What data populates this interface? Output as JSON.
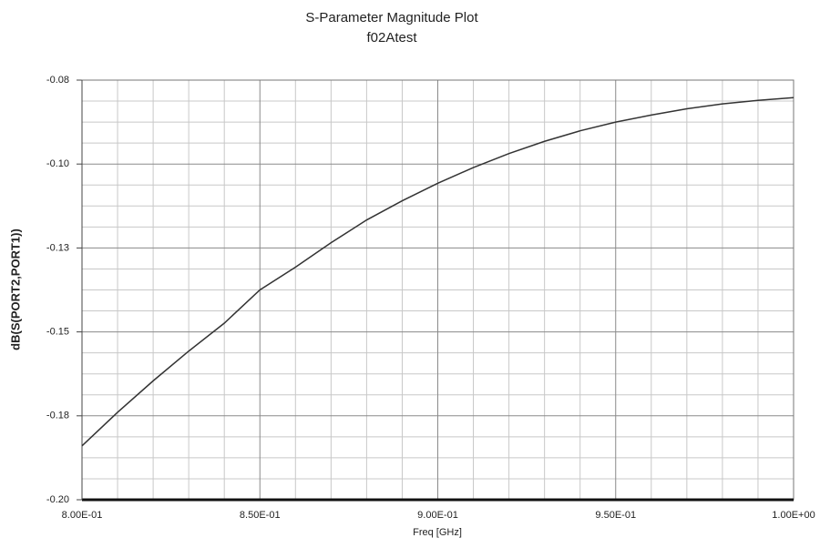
{
  "chart_data": {
    "type": "line",
    "title": "S-Parameter Magnitude Plot",
    "subtitle": "f02Atest",
    "x_label": "Freq [GHz]",
    "y_label": "dB(S(PORT2,PORT1))",
    "x": [
      0.8,
      0.81,
      0.82,
      0.83,
      0.84,
      0.85,
      0.86,
      0.87,
      0.88,
      0.89,
      0.9,
      0.91,
      0.92,
      0.93,
      0.94,
      0.95,
      0.96,
      0.97,
      0.98,
      0.99,
      1.0
    ],
    "values": [
      -0.1846,
      -0.175,
      -0.166,
      -0.1575,
      -0.1495,
      -0.14,
      -0.1335,
      -0.1265,
      -0.12,
      -0.1145,
      -0.1095,
      -0.105,
      -0.101,
      -0.0975,
      -0.0945,
      -0.092,
      -0.09,
      -0.0882,
      -0.0868,
      -0.0858,
      -0.085
    ],
    "color": "#333333",
    "xlim": [
      0.8,
      1.0
    ],
    "ylim": [
      -0.2,
      -0.08
    ],
    "xticks": [
      {
        "value": 0.8,
        "label": "8.00E-01"
      },
      {
        "value": 0.85,
        "label": "8.50E-01"
      },
      {
        "value": 0.9,
        "label": "9.00E-01"
      },
      {
        "value": 0.95,
        "label": "9.50E-01"
      },
      {
        "value": 1.0,
        "label": "1.00E+00"
      }
    ],
    "yticks": [
      {
        "value": -0.08,
        "label": "-0.08"
      },
      {
        "value": -0.104,
        "label": "-0.10"
      },
      {
        "value": -0.128,
        "label": "-0.13"
      },
      {
        "value": -0.152,
        "label": "-0.15"
      },
      {
        "value": -0.176,
        "label": "-0.18"
      },
      {
        "value": -0.2,
        "label": "-0.20"
      }
    ],
    "grid": true
  }
}
